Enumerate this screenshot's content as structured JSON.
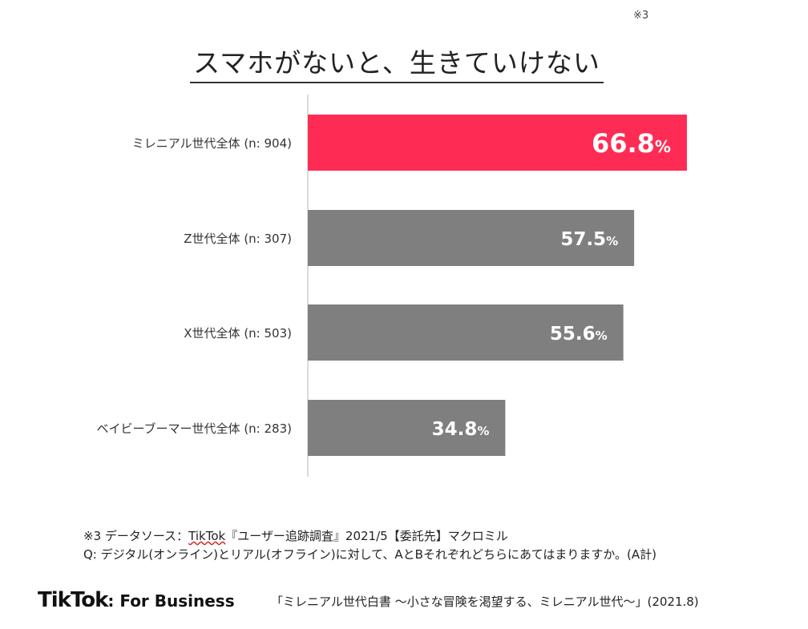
{
  "title": {
    "text": "スマホがないと、生きていけない",
    "note": "※3"
  },
  "chart_data": {
    "type": "bar",
    "orientation": "horizontal",
    "categories": [
      "ミレニアル世代全体 (n: 904)",
      "Z世代全体 (n: 307)",
      "X世代全体 (n: 503)",
      "ベイビーブーマー世代全体 (n: 283)"
    ],
    "values": [
      66.8,
      57.5,
      55.6,
      34.8
    ],
    "value_labels": [
      "66.8",
      "57.5",
      "55.6",
      "34.8"
    ],
    "unit": "%",
    "colors": [
      "#fe2c55",
      "#7f7f7f",
      "#7f7f7f",
      "#7f7f7f"
    ],
    "xlim": [
      0,
      100
    ],
    "grid": false,
    "legend": "none"
  },
  "footnotes": {
    "note_mark": "※3",
    "line1_a": "データソース：",
    "line1_brand": "TikTok",
    "line1_b": "『ユーザー追跡調査』2021/5【委託先】マクロミル",
    "line2": "Q: デジタル(オンライン)とリアル(オフライン)に対して、AとBそれぞれどちらにあてはまりますか。(A計)"
  },
  "footer": {
    "brand_main": "TikTok",
    "brand_sub": ": For Business",
    "source": "「ミレニアル世代白書 〜小さな冒険を渇望する、ミレニアル世代〜」(2021.8)"
  }
}
